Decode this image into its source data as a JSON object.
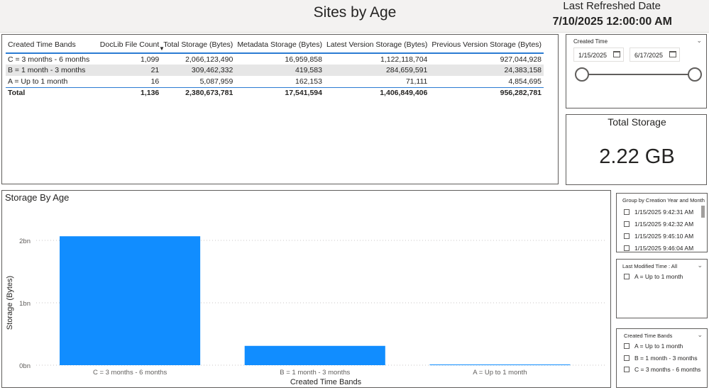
{
  "header": {
    "title": "Sites by Age",
    "refresh_label": "Last Refreshed Date",
    "refresh_value": "7/10/2025 12:00:00 AM"
  },
  "table": {
    "columns": [
      "Created Time Bands",
      "DocLib File Count",
      "Total Storage (Bytes)",
      "Metadata Storage (Bytes)",
      "Latest Version Storage (Bytes)",
      "Previous Version Storage (Bytes)"
    ],
    "rows": [
      [
        "C = 3 months - 6 months",
        "1,099",
        "2,066,123,490",
        "16,959,858",
        "1,122,118,704",
        "927,044,928"
      ],
      [
        "B = 1 month - 3 months",
        "21",
        "309,462,332",
        "419,583",
        "284,659,591",
        "24,383,158"
      ],
      [
        "A = Up to 1 month",
        "16",
        "5,087,959",
        "162,153",
        "71,111",
        "4,854,695"
      ]
    ],
    "total": [
      "Total",
      "1,136",
      "2,380,673,781",
      "17,541,594",
      "1,406,849,406",
      "956,282,781"
    ]
  },
  "created_time_slicer": {
    "title": "Created Time",
    "start_date": "1/15/2025",
    "end_date": "6/17/2025"
  },
  "card": {
    "title": "Total Storage",
    "value": "2.22 GB"
  },
  "chart_data": {
    "type": "bar",
    "title": "Storage By Age",
    "xlabel": "Created Time Bands",
    "ylabel": "Storage (Bytes)",
    "categories": [
      "C = 3 months - 6 months",
      "B = 1 month - 3 months",
      "A = Up to 1 month"
    ],
    "values": [
      2066123490,
      309462332,
      5087959
    ],
    "ylim": [
      0,
      2000000000
    ],
    "yticks": [
      0,
      1000000000,
      2000000000
    ],
    "ytick_labels": [
      "0bn",
      "1bn",
      "2bn"
    ],
    "color": "#118dff"
  },
  "group_slicer": {
    "title": "Group by Creation Year and Month",
    "items": [
      "1/15/2025 9:42:31 AM",
      "1/15/2025 9:42:32 AM",
      "1/15/2025 9:45:10 AM",
      "1/15/2025 9:46:04 AM"
    ]
  },
  "last_modified_slicer": {
    "title": "Last Modified Time : All",
    "items": [
      "A = Up to 1 month"
    ]
  },
  "bands_slicer": {
    "title": "Created Time Bands",
    "items": [
      "A = Up to 1 month",
      "B = 1 month - 3 months",
      "C = 3 months - 6 months"
    ]
  },
  "colors": {
    "accent": "#2b7cd3",
    "bar": "#118dff",
    "alt_row": "#e6e6e6"
  }
}
